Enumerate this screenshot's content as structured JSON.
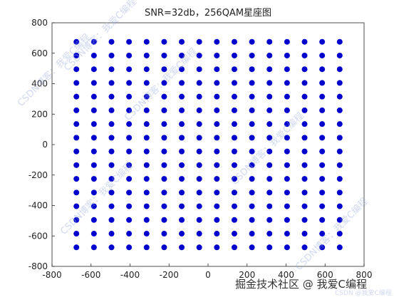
{
  "chart_data": {
    "type": "scatter",
    "title": "SNR=32db，256QAM星座图",
    "color": "#0000cc",
    "xlim": [
      -800,
      800
    ],
    "ylim": [
      -800,
      800
    ],
    "xticks": [
      -800,
      -600,
      -400,
      -200,
      0,
      200,
      400,
      600,
      800
    ],
    "yticks": [
      -800,
      -600,
      -400,
      -200,
      0,
      200,
      400,
      600,
      800
    ],
    "x": [
      -675,
      -585,
      -495,
      -405,
      -315,
      -225,
      -135,
      -45,
      45,
      135,
      225,
      315,
      405,
      495,
      585,
      675,
      -675,
      -585,
      -495,
      -405,
      -315,
      -225,
      -135,
      -45,
      45,
      135,
      225,
      315,
      405,
      495,
      585,
      675,
      -675,
      -585,
      -495,
      -405,
      -315,
      -225,
      -135,
      -45,
      45,
      135,
      225,
      315,
      405,
      495,
      585,
      675,
      -675,
      -585,
      -495,
      -405,
      -315,
      -225,
      -135,
      -45,
      45,
      135,
      225,
      315,
      405,
      495,
      585,
      675,
      -675,
      -585,
      -495,
      -405,
      -315,
      -225,
      -135,
      -45,
      45,
      135,
      225,
      315,
      405,
      495,
      585,
      675,
      -675,
      -585,
      -495,
      -405,
      -315,
      -225,
      -135,
      -45,
      45,
      135,
      225,
      315,
      405,
      495,
      585,
      675,
      -675,
      -585,
      -495,
      -405,
      -315,
      -225,
      -135,
      -45,
      45,
      135,
      225,
      315,
      405,
      495,
      585,
      675,
      -675,
      -585,
      -495,
      -405,
      -315,
      -225,
      -135,
      -45,
      45,
      135,
      225,
      315,
      405,
      495,
      585,
      675,
      -675,
      -585,
      -495,
      -405,
      -315,
      -225,
      -135,
      -45,
      45,
      135,
      225,
      315,
      405,
      495,
      585,
      675,
      -675,
      -585,
      -495,
      -405,
      -315,
      -225,
      -135,
      -45,
      45,
      135,
      225,
      315,
      405,
      495,
      585,
      675,
      -675,
      -585,
      -495,
      -405,
      -315,
      -225,
      -135,
      -45,
      45,
      135,
      225,
      315,
      405,
      495,
      585,
      675,
      -675,
      -585,
      -495,
      -405,
      -315,
      -225,
      -135,
      -45,
      45,
      135,
      225,
      315,
      405,
      495,
      585,
      675,
      -675,
      -585,
      -495,
      -405,
      -315,
      -225,
      -135,
      -45,
      45,
      135,
      225,
      315,
      405,
      495,
      585,
      675,
      -675,
      -585,
      -495,
      -405,
      -315,
      -225,
      -135,
      -45,
      45,
      135,
      225,
      315,
      405,
      495,
      585,
      675,
      -675,
      -585,
      -495,
      -405,
      -315,
      -225,
      -135,
      -45,
      45,
      135,
      225,
      315,
      405,
      495,
      585,
      675,
      -675,
      -585,
      -495,
      -405,
      -315,
      -225,
      -135,
      -45,
      45,
      135,
      225,
      315,
      405,
      495,
      585,
      675
    ],
    "values": [
      675,
      675,
      675,
      675,
      675,
      675,
      675,
      675,
      675,
      675,
      675,
      675,
      675,
      675,
      675,
      675,
      585,
      585,
      585,
      585,
      585,
      585,
      585,
      585,
      585,
      585,
      585,
      585,
      585,
      585,
      585,
      585,
      495,
      495,
      495,
      495,
      495,
      495,
      495,
      495,
      495,
      495,
      495,
      495,
      495,
      495,
      495,
      495,
      405,
      405,
      405,
      405,
      405,
      405,
      405,
      405,
      405,
      405,
      405,
      405,
      405,
      405,
      405,
      405,
      315,
      315,
      315,
      315,
      315,
      315,
      315,
      315,
      315,
      315,
      315,
      315,
      315,
      315,
      315,
      315,
      225,
      225,
      225,
      225,
      225,
      225,
      225,
      225,
      225,
      225,
      225,
      225,
      225,
      225,
      225,
      225,
      135,
      135,
      135,
      135,
      135,
      135,
      135,
      135,
      135,
      135,
      135,
      135,
      135,
      135,
      135,
      135,
      45,
      45,
      45,
      45,
      45,
      45,
      45,
      45,
      45,
      45,
      45,
      45,
      45,
      45,
      45,
      45,
      -45,
      -45,
      -45,
      -45,
      -45,
      -45,
      -45,
      -45,
      -45,
      -45,
      -45,
      -45,
      -45,
      -45,
      -45,
      -45,
      -135,
      -135,
      -135,
      -135,
      -135,
      -135,
      -135,
      -135,
      -135,
      -135,
      -135,
      -135,
      -135,
      -135,
      -135,
      -135,
      -225,
      -225,
      -225,
      -225,
      -225,
      -225,
      -225,
      -225,
      -225,
      -225,
      -225,
      -225,
      -225,
      -225,
      -225,
      -225,
      -315,
      -315,
      -315,
      -315,
      -315,
      -315,
      -315,
      -315,
      -315,
      -315,
      -315,
      -315,
      -315,
      -315,
      -315,
      -315,
      -405,
      -405,
      -405,
      -405,
      -405,
      -405,
      -405,
      -405,
      -405,
      -405,
      -405,
      -405,
      -405,
      -405,
      -405,
      -405,
      -495,
      -495,
      -495,
      -495,
      -495,
      -495,
      -495,
      -495,
      -495,
      -495,
      -495,
      -495,
      -495,
      -495,
      -495,
      -495,
      -585,
      -585,
      -585,
      -585,
      -585,
      -585,
      -585,
      -585,
      -585,
      -585,
      -585,
      -585,
      -585,
      -585,
      -585,
      -585,
      -675,
      -675,
      -675,
      -675,
      -675,
      -675,
      -675,
      -675,
      -675,
      -675,
      -675,
      -675,
      -675,
      -675,
      -675,
      -675
    ],
    "watermarks": [
      "CSDN博客：我爱C编程",
      "CSDN博客：我爱C编程",
      "CSDN博客：我爱C编程",
      "CSDN博客：我爱C编程",
      "CSDN博客：我爱C编程",
      "CSDN博客：我爱C编程",
      "掘金技术社区 @ 我爱C编程",
      "CSDN @我爱C编程"
    ]
  }
}
